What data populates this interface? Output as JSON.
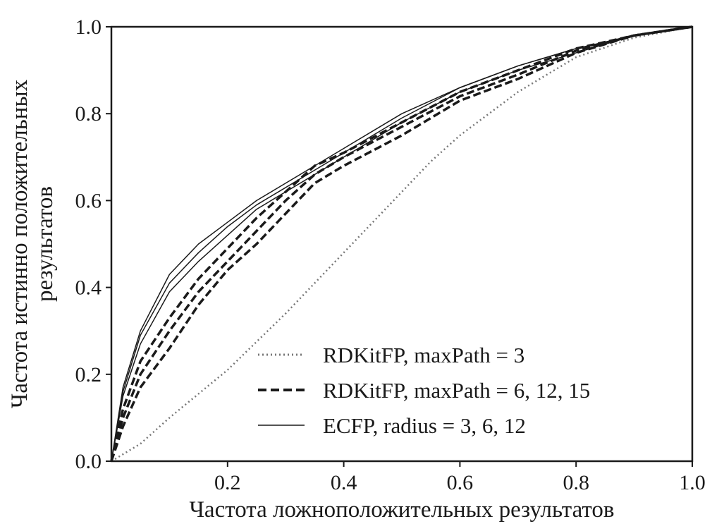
{
  "chart_data": {
    "type": "line",
    "title": "",
    "xlabel": "Частота ложноположительных результатов",
    "ylabel_lines": [
      "Частота истинно положительных",
      "результатов"
    ],
    "xlim": [
      0,
      1
    ],
    "ylim": [
      0,
      1
    ],
    "x_ticks": [
      "0.2",
      "0.4",
      "0.6",
      "0.8",
      "1.0"
    ],
    "y_ticks": [
      "0.0",
      "0.2",
      "0.4",
      "0.6",
      "0.8",
      "1.0"
    ],
    "grid": false,
    "legend_position": "lower-right",
    "legend": [
      {
        "label": "RDKitFP, maxPath = 3",
        "style": "dotted"
      },
      {
        "label": "RDKitFP, maxPath = 6, 12, 15",
        "style": "dashed"
      },
      {
        "label": "ECFP, radius = 3, 6, 12",
        "style": "solid"
      }
    ],
    "series": [
      {
        "style": "dotted",
        "color": "#777777",
        "x": [
          0,
          0.05,
          0.1,
          0.2,
          0.3,
          0.4,
          0.5,
          0.55,
          0.6,
          0.7,
          0.8,
          0.9,
          1.0
        ],
        "y": [
          0,
          0.04,
          0.1,
          0.21,
          0.34,
          0.48,
          0.62,
          0.69,
          0.75,
          0.85,
          0.93,
          0.975,
          1.0
        ]
      },
      {
        "style": "dashed",
        "color": "#1a1a1a",
        "x": [
          0,
          0.02,
          0.05,
          0.1,
          0.15,
          0.2,
          0.25,
          0.3,
          0.35,
          0.4,
          0.5,
          0.6,
          0.7,
          0.8,
          0.9,
          1.0
        ],
        "y": [
          0,
          0.08,
          0.17,
          0.26,
          0.36,
          0.44,
          0.5,
          0.57,
          0.64,
          0.68,
          0.75,
          0.83,
          0.88,
          0.94,
          0.98,
          1.0
        ]
      },
      {
        "style": "dashed",
        "color": "#1a1a1a",
        "x": [
          0,
          0.02,
          0.05,
          0.1,
          0.15,
          0.2,
          0.25,
          0.3,
          0.35,
          0.4,
          0.5,
          0.6,
          0.7,
          0.8,
          0.9,
          1.0
        ],
        "y": [
          0,
          0.1,
          0.2,
          0.3,
          0.39,
          0.46,
          0.53,
          0.6,
          0.66,
          0.7,
          0.77,
          0.84,
          0.89,
          0.945,
          0.98,
          1.0
        ]
      },
      {
        "style": "dashed",
        "color": "#1a1a1a",
        "x": [
          0,
          0.02,
          0.05,
          0.1,
          0.15,
          0.2,
          0.25,
          0.3,
          0.35,
          0.4,
          0.5,
          0.6,
          0.7,
          0.8,
          0.9,
          1.0
        ],
        "y": [
          0,
          0.12,
          0.23,
          0.33,
          0.42,
          0.49,
          0.56,
          0.62,
          0.68,
          0.71,
          0.78,
          0.85,
          0.9,
          0.95,
          0.98,
          1.0
        ]
      },
      {
        "style": "solid",
        "color": "#1a1a1a",
        "x": [
          0,
          0.02,
          0.05,
          0.1,
          0.15,
          0.2,
          0.25,
          0.3,
          0.35,
          0.4,
          0.5,
          0.6,
          0.7,
          0.8,
          0.9,
          1.0
        ],
        "y": [
          0,
          0.15,
          0.27,
          0.39,
          0.46,
          0.52,
          0.58,
          0.62,
          0.66,
          0.7,
          0.78,
          0.85,
          0.9,
          0.94,
          0.98,
          1.0
        ]
      },
      {
        "style": "solid",
        "color": "#1a1a1a",
        "x": [
          0,
          0.02,
          0.05,
          0.1,
          0.15,
          0.2,
          0.25,
          0.3,
          0.35,
          0.4,
          0.5,
          0.6,
          0.7,
          0.8,
          0.9,
          1.0
        ],
        "y": [
          0,
          0.16,
          0.29,
          0.41,
          0.48,
          0.54,
          0.59,
          0.63,
          0.67,
          0.71,
          0.79,
          0.86,
          0.91,
          0.95,
          0.98,
          1.0
        ]
      },
      {
        "style": "solid",
        "color": "#1a1a1a",
        "x": [
          0,
          0.02,
          0.05,
          0.1,
          0.15,
          0.2,
          0.25,
          0.3,
          0.35,
          0.4,
          0.5,
          0.6,
          0.7,
          0.8,
          0.9,
          1.0
        ],
        "y": [
          0,
          0.17,
          0.3,
          0.43,
          0.5,
          0.55,
          0.6,
          0.64,
          0.68,
          0.72,
          0.8,
          0.86,
          0.91,
          0.95,
          0.98,
          1.0
        ]
      }
    ]
  }
}
